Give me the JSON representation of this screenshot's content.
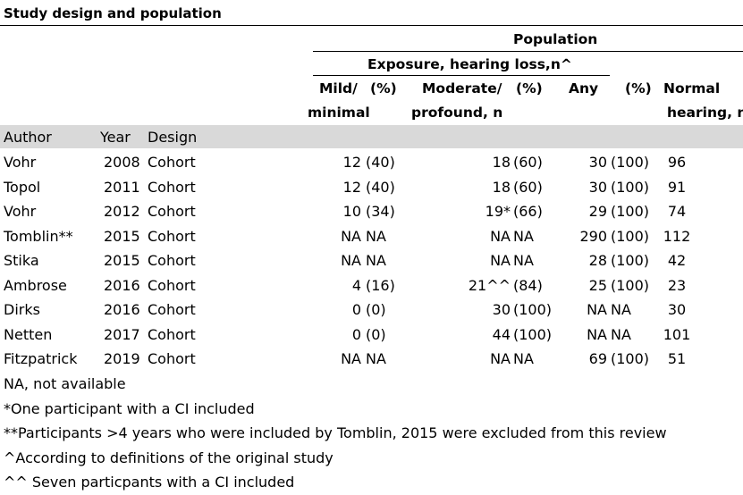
{
  "title": "Study design and population",
  "header": {
    "population": "Population",
    "exposure": "Exposure, hearing loss,n^",
    "mild_l1": "Mild/",
    "mild_pct": "(%)",
    "mild_l2": "minimal",
    "mod_l1": "Moderate/",
    "mod_pct": "(%)",
    "mod_l2": "profound, n",
    "any": "Any",
    "any_pct": "(%)",
    "normal_l1": "Normal",
    "normal_l2": "hearing, n"
  },
  "columns": {
    "author": "Author",
    "year": "Year",
    "design": "Design"
  },
  "rows": [
    {
      "author": "Vohr",
      "year": "2008",
      "design": "Cohort",
      "mild_n": "12",
      "mild_pct": "(40)",
      "mod_n": "18",
      "mod_pct": "(60)",
      "any_n": "30",
      "any_pct": "(100)",
      "normal": "96"
    },
    {
      "author": "Topol",
      "year": "2011",
      "design": "Cohort",
      "mild_n": "12",
      "mild_pct": "(40)",
      "mod_n": "18",
      "mod_pct": "(60)",
      "any_n": "30",
      "any_pct": "(100)",
      "normal": "91"
    },
    {
      "author": "Vohr",
      "year": "2012",
      "design": "Cohort",
      "mild_n": "10",
      "mild_pct": "(34)",
      "mod_n": "19*",
      "mod_pct": "(66)",
      "any_n": "29",
      "any_pct": "(100)",
      "normal": "74"
    },
    {
      "author": "Tomblin**",
      "year": "2015",
      "design": "Cohort",
      "mild_n": "NA",
      "mild_pct": "NA",
      "mod_n": "NA",
      "mod_pct": "NA",
      "any_n": "290",
      "any_pct": "(100)",
      "normal": "112"
    },
    {
      "author": "Stika",
      "year": "2015",
      "design": "Cohort",
      "mild_n": "NA",
      "mild_pct": "NA",
      "mod_n": "NA",
      "mod_pct": "NA",
      "any_n": "28",
      "any_pct": "(100)",
      "normal": "42"
    },
    {
      "author": "Ambrose",
      "year": "2016",
      "design": "Cohort",
      "mild_n": "4",
      "mild_pct": "(16)",
      "mod_n": "21^^",
      "mod_pct": "(84)",
      "any_n": "25",
      "any_pct": "(100)",
      "normal": "23"
    },
    {
      "author": "Dirks",
      "year": "2016",
      "design": "Cohort",
      "mild_n": "0",
      "mild_pct": "(0)",
      "mod_n": "30",
      "mod_pct": "(100)",
      "any_n": "NA",
      "any_pct": "NA",
      "normal": "30"
    },
    {
      "author": "Netten",
      "year": "2017",
      "design": "Cohort",
      "mild_n": "0",
      "mild_pct": "(0)",
      "mod_n": "44",
      "mod_pct": "(100)",
      "any_n": "NA",
      "any_pct": "NA",
      "normal": "101"
    },
    {
      "author": "Fitzpatrick",
      "year": "2019",
      "design": "Cohort",
      "mild_n": "NA",
      "mild_pct": "NA",
      "mod_n": "NA",
      "mod_pct": "NA",
      "any_n": "69",
      "any_pct": "(100)",
      "normal": "51"
    }
  ],
  "footnotes": [
    "NA, not available",
    "*One participant with a CI included",
    "**Participants >4 years who were included by Tomblin, 2015 were excluded from this review",
    "^According to definitions of the original study",
    "^^ Seven particpants with a CI included"
  ]
}
